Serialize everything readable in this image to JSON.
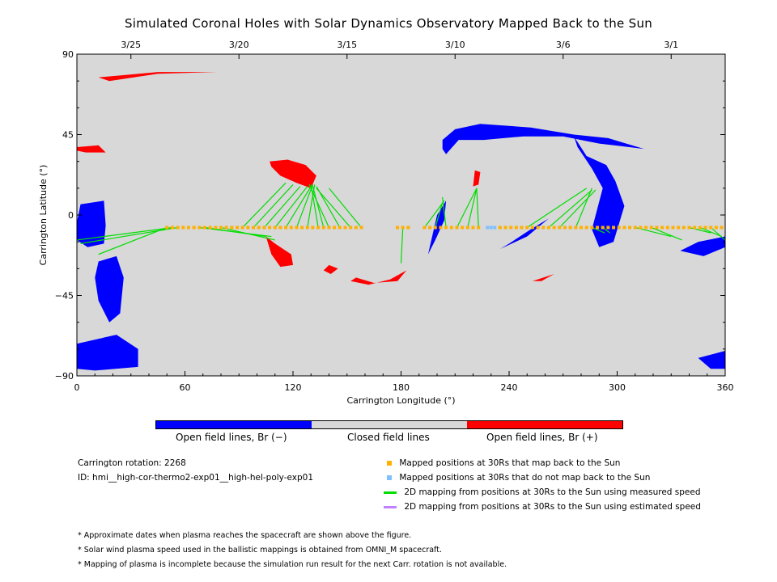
{
  "title": "Simulated Coronal Holes with Solar Dynamics Observatory Mapped Back to the Sun",
  "chart_data": {
    "type": "scatter",
    "title": "Simulated Coronal Holes with Solar Dynamics Observatory Mapped Back to the Sun",
    "xlabel": "Carrington Longitude (°)",
    "ylabel": "Carrington Latitude (°)",
    "xlim": [
      0,
      360
    ],
    "ylim": [
      -90,
      90
    ],
    "x_ticks": [
      0,
      60,
      120,
      180,
      240,
      300,
      360
    ],
    "y_ticks": [
      -90,
      -45,
      0,
      45,
      90
    ],
    "y_tick_labels": [
      "−90",
      "−45",
      "0",
      "45",
      "90"
    ],
    "top_axis_dates": [
      {
        "label": "3/25",
        "lon": 30
      },
      {
        "label": "3/20",
        "lon": 90
      },
      {
        "label": "3/15",
        "lon": 150
      },
      {
        "label": "3/10",
        "lon": 210
      },
      {
        "label": "3/6",
        "lon": 270
      },
      {
        "label": "3/1",
        "lon": 330
      }
    ],
    "background_color": "#d8d8d8",
    "colors": {
      "negative": "#0000ff",
      "positive": "#ff0000",
      "mapped": "#ffb000",
      "unmapped": "#80c0ff",
      "measured": "#00dd00",
      "estimated": "#c080ff"
    },
    "coronal_holes": [
      {
        "polarity": "positive",
        "points": [
          [
            12,
            77
          ],
          [
            45,
            80
          ],
          [
            78,
            80
          ],
          [
            45,
            79
          ],
          [
            18,
            75
          ]
        ]
      },
      {
        "polarity": "positive",
        "points": [
          [
            0,
            38
          ],
          [
            12,
            39
          ],
          [
            16,
            35
          ],
          [
            5,
            35
          ],
          [
            0,
            36
          ]
        ]
      },
      {
        "polarity": "positive",
        "points": [
          [
            107,
            30
          ],
          [
            117,
            31
          ],
          [
            127,
            28
          ],
          [
            133,
            22
          ],
          [
            130,
            15
          ],
          [
            122,
            18
          ],
          [
            113,
            22
          ],
          [
            108,
            27
          ]
        ]
      },
      {
        "polarity": "positive",
        "points": [
          [
            105,
            -12
          ],
          [
            110,
            -16
          ],
          [
            119,
            -22
          ],
          [
            120,
            -28
          ],
          [
            113,
            -29
          ],
          [
            108,
            -22
          ]
        ]
      },
      {
        "polarity": "positive",
        "points": [
          [
            221,
            25
          ],
          [
            224,
            24
          ],
          [
            223,
            17
          ],
          [
            220,
            16
          ]
        ]
      },
      {
        "polarity": "positive",
        "points": [
          [
            155,
            -35
          ],
          [
            165,
            -38
          ],
          [
            178,
            -37
          ],
          [
            183,
            -31
          ],
          [
            174,
            -36
          ],
          [
            162,
            -39
          ],
          [
            152,
            -37
          ]
        ]
      },
      {
        "polarity": "positive",
        "points": [
          [
            140,
            -28
          ],
          [
            145,
            -30
          ],
          [
            141,
            -33
          ],
          [
            137,
            -31
          ]
        ]
      },
      {
        "polarity": "positive",
        "points": [
          [
            253,
            -37
          ],
          [
            262,
            -34
          ],
          [
            265,
            -33
          ],
          [
            258,
            -37
          ]
        ]
      },
      {
        "polarity": "negative",
        "points": [
          [
            2,
            6
          ],
          [
            15,
            8
          ],
          [
            16,
            -6
          ],
          [
            15,
            -16
          ],
          [
            6,
            -18
          ],
          [
            0,
            -14
          ],
          [
            0,
            -4
          ]
        ]
      },
      {
        "polarity": "negative",
        "points": [
          [
            12,
            -26
          ],
          [
            22,
            -23
          ],
          [
            26,
            -35
          ],
          [
            24,
            -55
          ],
          [
            18,
            -60
          ],
          [
            12,
            -48
          ],
          [
            10,
            -35
          ]
        ]
      },
      {
        "polarity": "negative",
        "points": [
          [
            0,
            -72
          ],
          [
            22,
            -67
          ],
          [
            34,
            -75
          ],
          [
            34,
            -85
          ],
          [
            10,
            -87
          ],
          [
            0,
            -86
          ]
        ]
      },
      {
        "polarity": "negative",
        "points": [
          [
            203,
            42
          ],
          [
            210,
            48
          ],
          [
            224,
            51
          ],
          [
            252,
            49
          ],
          [
            276,
            45
          ],
          [
            295,
            43
          ],
          [
            315,
            37
          ],
          [
            290,
            40
          ],
          [
            270,
            44
          ],
          [
            248,
            44
          ],
          [
            226,
            42
          ],
          [
            212,
            42
          ],
          [
            205,
            34
          ],
          [
            203,
            37
          ]
        ]
      },
      {
        "polarity": "negative",
        "points": [
          [
            276,
            44
          ],
          [
            283,
            33
          ],
          [
            294,
            28
          ],
          [
            299,
            19
          ],
          [
            304,
            5
          ],
          [
            298,
            -15
          ],
          [
            290,
            -18
          ],
          [
            286,
            -8
          ],
          [
            292,
            15
          ],
          [
            286,
            26
          ],
          [
            278,
            38
          ]
        ]
      },
      {
        "polarity": "negative",
        "points": [
          [
            235,
            -19
          ],
          [
            250,
            -12
          ],
          [
            262,
            -2
          ],
          [
            252,
            -8
          ],
          [
            240,
            -16
          ]
        ]
      },
      {
        "polarity": "negative",
        "points": [
          [
            335,
            -20
          ],
          [
            345,
            -15
          ],
          [
            360,
            -12
          ],
          [
            360,
            -18
          ],
          [
            348,
            -23
          ]
        ]
      },
      {
        "polarity": "negative",
        "points": [
          [
            345,
            -80
          ],
          [
            360,
            -76
          ],
          [
            360,
            -86
          ],
          [
            352,
            -86
          ]
        ]
      },
      {
        "polarity": "negative",
        "points": [
          [
            195,
            -22
          ],
          [
            200,
            0
          ],
          [
            205,
            8
          ],
          [
            204,
            -3
          ],
          [
            199,
            -14
          ]
        ]
      }
    ],
    "mapped_points_lat": -7,
    "mapped_points_lon": [
      50,
      53,
      56,
      59,
      62,
      65,
      68,
      71,
      74,
      77,
      80,
      83,
      86,
      89,
      92,
      95,
      98,
      101,
      104,
      107,
      110,
      113,
      116,
      119,
      122,
      125,
      128,
      131,
      134,
      137,
      140,
      143,
      146,
      149,
      152,
      155,
      158,
      178,
      181,
      184,
      193,
      196,
      199,
      202,
      205,
      208,
      211,
      214,
      217,
      220,
      223,
      235,
      238,
      241,
      244,
      247,
      250,
      253,
      256,
      259,
      262,
      265,
      268,
      271,
      274,
      277,
      280,
      283,
      286,
      289,
      292,
      295,
      298,
      301,
      304,
      307,
      310,
      313,
      316,
      319,
      322,
      325,
      328,
      331,
      334,
      337,
      340,
      343,
      346,
      349,
      352,
      355,
      358
    ],
    "unmapped_points_lon": [
      228,
      230,
      232
    ],
    "mapping_lines": [
      {
        "from": [
          50,
          -7
        ],
        "to": [
          12,
          -22
        ]
      },
      {
        "from": [
          53,
          -7
        ],
        "to": [
          0,
          -14
        ]
      },
      {
        "from": [
          56,
          -7
        ],
        "to": [
          2,
          -16
        ]
      },
      {
        "from": [
          68,
          -7
        ],
        "to": [
          108,
          -12
        ]
      },
      {
        "from": [
          71,
          -7
        ],
        "to": [
          105,
          -12
        ]
      },
      {
        "from": [
          80,
          -7
        ],
        "to": [
          110,
          -14
        ]
      },
      {
        "from": [
          92,
          -7
        ],
        "to": [
          116,
          18
        ]
      },
      {
        "from": [
          98,
          -7
        ],
        "to": [
          120,
          17
        ]
      },
      {
        "from": [
          104,
          -7
        ],
        "to": [
          124,
          16
        ]
      },
      {
        "from": [
          110,
          -7
        ],
        "to": [
          128,
          16
        ]
      },
      {
        "from": [
          116,
          -7
        ],
        "to": [
          130,
          16
        ]
      },
      {
        "from": [
          122,
          -7
        ],
        "to": [
          131,
          17
        ]
      },
      {
        "from": [
          128,
          -7
        ],
        "to": [
          132,
          17
        ]
      },
      {
        "from": [
          134,
          -7
        ],
        "to": [
          130,
          17
        ]
      },
      {
        "from": [
          137,
          -7
        ],
        "to": [
          131,
          16
        ]
      },
      {
        "from": [
          140,
          -7
        ],
        "to": [
          129,
          17
        ]
      },
      {
        "from": [
          146,
          -7
        ],
        "to": [
          133,
          16
        ]
      },
      {
        "from": [
          152,
          -7
        ],
        "to": [
          133,
          15
        ]
      },
      {
        "from": [
          158,
          -7
        ],
        "to": [
          140,
          15
        ]
      },
      {
        "from": [
          181,
          -7
        ],
        "to": [
          180,
          -27
        ]
      },
      {
        "from": [
          193,
          -7
        ],
        "to": [
          204,
          8
        ]
      },
      {
        "from": [
          199,
          -7
        ],
        "to": [
          203,
          7
        ]
      },
      {
        "from": [
          205,
          -7
        ],
        "to": [
          203,
          10
        ]
      },
      {
        "from": [
          211,
          -7
        ],
        "to": [
          222,
          15
        ]
      },
      {
        "from": [
          217,
          -7
        ],
        "to": [
          222,
          15
        ]
      },
      {
        "from": [
          223,
          -7
        ],
        "to": [
          222,
          15
        ]
      },
      {
        "from": [
          250,
          -7
        ],
        "to": [
          283,
          15
        ]
      },
      {
        "from": [
          262,
          -7
        ],
        "to": [
          286,
          14
        ]
      },
      {
        "from": [
          268,
          -7
        ],
        "to": [
          288,
          14
        ]
      },
      {
        "from": [
          277,
          -7
        ],
        "to": [
          286,
          15
        ]
      },
      {
        "from": [
          286,
          -7
        ],
        "to": [
          293,
          -10
        ]
      },
      {
        "from": [
          292,
          -7
        ],
        "to": [
          296,
          -10
        ]
      },
      {
        "from": [
          310,
          -7
        ],
        "to": [
          330,
          -12
        ]
      },
      {
        "from": [
          319,
          -7
        ],
        "to": [
          336,
          -14
        ]
      },
      {
        "from": [
          340,
          -7
        ],
        "to": [
          352,
          -10
        ]
      },
      {
        "from": [
          346,
          -7
        ],
        "to": [
          358,
          -12
        ]
      },
      {
        "from": [
          352,
          -7
        ],
        "to": [
          360,
          -14
        ]
      }
    ]
  },
  "colorbar": {
    "labels": [
      "Open field lines, Br (−)",
      "Closed field lines",
      "Open field lines, Br (+)"
    ],
    "colors": [
      "#0000ff",
      "#d8d8d8",
      "#ff0000"
    ]
  },
  "info": {
    "rotation": "Carrington rotation: 2268",
    "id": "ID: hmi__high-cor-thermo2-exp01__high-hel-poly-exp01"
  },
  "legend": [
    {
      "label": "Mapped positions at 30Rs that map back to the Sun",
      "kind": "square",
      "color": "#ffb000"
    },
    {
      "label": "Mapped positions at 30Rs that do not map back to the Sun",
      "kind": "square",
      "color": "#80c0ff"
    },
    {
      "label": "2D mapping from positions at 30Rs to the Sun using measured speed",
      "kind": "line",
      "color": "#00dd00"
    },
    {
      "label": "2D mapping from positions at 30Rs to the Sun using estimated speed",
      "kind": "line",
      "color": "#c080ff"
    }
  ],
  "notes": [
    "* Approximate dates when plasma reaches the spacecraft are shown above the figure.",
    "* Solar wind plasma speed used in the ballistic mappings is obtained from OMNI_M spacecraft.",
    "* Mapping of plasma is incomplete because the simulation run result for the next Carr. rotation is not available."
  ]
}
